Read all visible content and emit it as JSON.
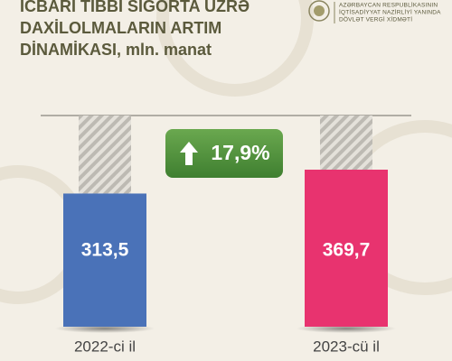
{
  "organization": [
    "AZƏRBAYCAN RESPUBLİKASININ",
    "İQTİSADİYYAT NAZİRLİYİ YANINDA",
    "DÖVLƏT VERGİ XİDMƏTİ"
  ],
  "chart_data": {
    "type": "bar",
    "title": [
      "İCBARİ TİBBİ SIĞORTA ÜZRƏ",
      "DAXİLOLMALARIN ARTIM",
      "DİNAMİKASI, mln. manat"
    ],
    "categories": [
      "2022-ci il",
      "2023-cü il"
    ],
    "values": [
      313.5,
      369.7
    ],
    "value_labels": [
      "313,5",
      "369,7"
    ],
    "colors": [
      "#4a72b8",
      "#e8336f"
    ],
    "annotation": "17,9%"
  }
}
